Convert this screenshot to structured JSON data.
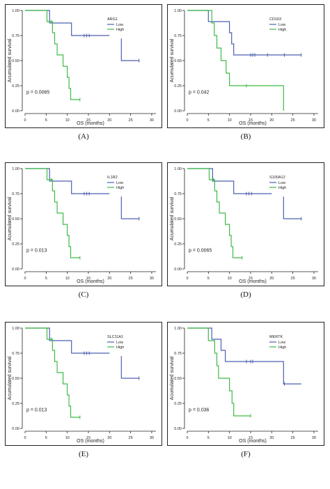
{
  "colors": {
    "low": "#4a5fb0",
    "high": "#3dbb45",
    "axis": "#222222",
    "text": "#222222"
  },
  "axis_common": {
    "xlabel": "OS (months)",
    "ylabel": "Acumulated survival",
    "xticks": [
      0,
      5,
      10,
      15,
      20,
      25,
      30
    ],
    "yticks": [
      0.0,
      0.25,
      0.5,
      0.75,
      1.0
    ],
    "ytick_labels": [
      "0.00",
      "0.25",
      "0.50",
      "0.75",
      "1.00"
    ],
    "xlim": [
      0,
      31
    ],
    "ylim": [
      0,
      1
    ]
  },
  "chart_data": [
    {
      "type": "line",
      "label": "(A)",
      "legend_title": "ARG1",
      "pvalue": "p = 0.0065",
      "series": [
        {
          "name": "Low",
          "points": [
            [
              0,
              1
            ],
            [
              5.8,
              1
            ],
            [
              5.8,
              0.875
            ],
            [
              11,
              0.875
            ],
            [
              11,
              0.75
            ],
            [
              20,
              0.75
            ]
          ],
          "jump": [
            [
              22.8,
              0.72
            ],
            [
              22.8,
              0.5
            ],
            [
              27,
              0.5
            ]
          ],
          "censors": [
            [
              14,
              0.75
            ],
            [
              14.6,
              0.75
            ],
            [
              15.2,
              0.75
            ],
            [
              27,
              0.5
            ]
          ]
        },
        {
          "name": "High",
          "points": [
            [
              0,
              1
            ],
            [
              5.2,
              1
            ],
            [
              5.2,
              0.889
            ],
            [
              6.5,
              0.889
            ],
            [
              6.5,
              0.778
            ],
            [
              7,
              0.778
            ],
            [
              7,
              0.667
            ],
            [
              7.6,
              0.667
            ],
            [
              7.6,
              0.556
            ],
            [
              9,
              0.556
            ],
            [
              9,
              0.444
            ],
            [
              10,
              0.444
            ],
            [
              10,
              0.333
            ],
            [
              10.4,
              0.333
            ],
            [
              10.4,
              0.222
            ],
            [
              10.8,
              0.222
            ],
            [
              10.8,
              0.111
            ],
            [
              13,
              0.111
            ]
          ],
          "censors": [
            [
              6.2,
              0.889
            ],
            [
              13,
              0.111
            ]
          ]
        }
      ]
    },
    {
      "type": "line",
      "label": "(B)",
      "legend_title": "CD163",
      "pvalue": "p = 0.042",
      "series": [
        {
          "name": "Low",
          "points": [
            [
              0,
              1
            ],
            [
              5,
              1
            ],
            [
              5,
              0.889
            ],
            [
              10,
              0.889
            ],
            [
              10,
              0.778
            ],
            [
              10.5,
              0.778
            ],
            [
              10.5,
              0.667
            ],
            [
              11,
              0.667
            ],
            [
              11,
              0.556
            ],
            [
              27,
              0.556
            ]
          ],
          "censors": [
            [
              15,
              0.556
            ],
            [
              15.5,
              0.556
            ],
            [
              16,
              0.556
            ],
            [
              19,
              0.556
            ],
            [
              23,
              0.556
            ],
            [
              27,
              0.556
            ]
          ]
        },
        {
          "name": "High",
          "points": [
            [
              0,
              1
            ],
            [
              5.8,
              1
            ],
            [
              5.8,
              0.875
            ],
            [
              6.4,
              0.875
            ],
            [
              6.4,
              0.75
            ],
            [
              7,
              0.75
            ],
            [
              7,
              0.625
            ],
            [
              8,
              0.625
            ],
            [
              8,
              0.5
            ],
            [
              9.2,
              0.5
            ],
            [
              9.2,
              0.375
            ],
            [
              10,
              0.375
            ],
            [
              10,
              0.25
            ],
            [
              22.8,
              0.25
            ],
            [
              22.8,
              0
            ]
          ],
          "censors": [
            [
              14,
              0.25
            ]
          ]
        }
      ]
    },
    {
      "type": "line",
      "label": "(C)",
      "legend_title": "IL1R2",
      "pvalue": "p = 0.013",
      "series": [
        {
          "name": "Low",
          "points": [
            [
              0,
              1
            ],
            [
              5.8,
              1
            ],
            [
              5.8,
              0.875
            ],
            [
              11,
              0.875
            ],
            [
              11,
              0.75
            ],
            [
              20,
              0.75
            ]
          ],
          "jump": [
            [
              22.8,
              0.72
            ],
            [
              22.8,
              0.5
            ],
            [
              27,
              0.5
            ]
          ],
          "censors": [
            [
              14,
              0.75
            ],
            [
              14.6,
              0.75
            ],
            [
              15.2,
              0.75
            ],
            [
              27,
              0.5
            ]
          ]
        },
        {
          "name": "High",
          "points": [
            [
              0,
              1
            ],
            [
              5.2,
              1
            ],
            [
              5.2,
              0.889
            ],
            [
              6.5,
              0.889
            ],
            [
              6.5,
              0.778
            ],
            [
              7,
              0.778
            ],
            [
              7,
              0.667
            ],
            [
              7.6,
              0.667
            ],
            [
              7.6,
              0.556
            ],
            [
              9,
              0.556
            ],
            [
              9,
              0.444
            ],
            [
              10,
              0.444
            ],
            [
              10,
              0.333
            ],
            [
              10.4,
              0.333
            ],
            [
              10.4,
              0.222
            ],
            [
              10.8,
              0.222
            ],
            [
              10.8,
              0.111
            ],
            [
              13,
              0.111
            ]
          ],
          "censors": [
            [
              6.2,
              0.889
            ],
            [
              13,
              0.111
            ]
          ]
        }
      ]
    },
    {
      "type": "line",
      "label": "(D)",
      "legend_title": "S100A12",
      "pvalue": "p = 0.0065",
      "series": [
        {
          "name": "Low",
          "points": [
            [
              0,
              1
            ],
            [
              6,
              1
            ],
            [
              6,
              0.875
            ],
            [
              11,
              0.875
            ],
            [
              11,
              0.75
            ],
            [
              20,
              0.75
            ]
          ],
          "jump": [
            [
              22.8,
              0.72
            ],
            [
              22.8,
              0.5
            ],
            [
              27,
              0.5
            ]
          ],
          "censors": [
            [
              14,
              0.75
            ],
            [
              14.6,
              0.75
            ],
            [
              15.2,
              0.75
            ],
            [
              27,
              0.5
            ]
          ]
        },
        {
          "name": "High",
          "points": [
            [
              0,
              1
            ],
            [
              5.2,
              1
            ],
            [
              5.2,
              0.889
            ],
            [
              6.5,
              0.889
            ],
            [
              6.5,
              0.778
            ],
            [
              7,
              0.778
            ],
            [
              7,
              0.667
            ],
            [
              7.6,
              0.667
            ],
            [
              7.6,
              0.556
            ],
            [
              9,
              0.556
            ],
            [
              9,
              0.444
            ],
            [
              10,
              0.444
            ],
            [
              10,
              0.333
            ],
            [
              10.4,
              0.333
            ],
            [
              10.4,
              0.222
            ],
            [
              10.8,
              0.222
            ],
            [
              10.8,
              0.111
            ],
            [
              13,
              0.111
            ]
          ],
          "censors": [
            [
              6.2,
              0.889
            ],
            [
              13,
              0.111
            ]
          ]
        }
      ]
    },
    {
      "type": "line",
      "label": "(E)",
      "legend_title": "SLC11A1",
      "pvalue": "p = 0.013",
      "series": [
        {
          "name": "Low",
          "points": [
            [
              0,
              1
            ],
            [
              5.8,
              1
            ],
            [
              5.8,
              0.875
            ],
            [
              11,
              0.875
            ],
            [
              11,
              0.75
            ],
            [
              20,
              0.75
            ]
          ],
          "jump": [
            [
              22.8,
              0.72
            ],
            [
              22.8,
              0.5
            ],
            [
              27,
              0.5
            ]
          ],
          "censors": [
            [
              14,
              0.75
            ],
            [
              14.6,
              0.75
            ],
            [
              15.2,
              0.75
            ],
            [
              27,
              0.5
            ]
          ]
        },
        {
          "name": "High",
          "points": [
            [
              0,
              1
            ],
            [
              5.2,
              1
            ],
            [
              5.2,
              0.889
            ],
            [
              6.5,
              0.889
            ],
            [
              6.5,
              0.778
            ],
            [
              7,
              0.778
            ],
            [
              7,
              0.667
            ],
            [
              7.6,
              0.667
            ],
            [
              7.6,
              0.556
            ],
            [
              9,
              0.556
            ],
            [
              9,
              0.444
            ],
            [
              10,
              0.444
            ],
            [
              10,
              0.333
            ],
            [
              10.4,
              0.333
            ],
            [
              10.4,
              0.222
            ],
            [
              10.8,
              0.222
            ],
            [
              10.8,
              0.111
            ],
            [
              13,
              0.111
            ]
          ],
          "censors": [
            [
              6.2,
              0.889
            ],
            [
              13,
              0.111
            ]
          ]
        }
      ]
    },
    {
      "type": "line",
      "label": "(F)",
      "legend_title": "MERTK",
      "pvalue": "p = 0.036",
      "series": [
        {
          "name": "Low",
          "points": [
            [
              0,
              1
            ],
            [
              5.8,
              1
            ],
            [
              5.8,
              0.889
            ],
            [
              8,
              0.889
            ],
            [
              8,
              0.778
            ],
            [
              9,
              0.778
            ],
            [
              9,
              0.667
            ],
            [
              22.8,
              0.667
            ],
            [
              22.8,
              0.444
            ],
            [
              27,
              0.444
            ]
          ],
          "censors": [
            [
              14,
              0.667
            ],
            [
              15,
              0.667
            ],
            [
              15.5,
              0.667
            ],
            [
              23,
              0.444
            ]
          ]
        },
        {
          "name": "High",
          "points": [
            [
              0,
              1
            ],
            [
              5,
              1
            ],
            [
              5,
              0.875
            ],
            [
              6.5,
              0.875
            ],
            [
              6.5,
              0.75
            ],
            [
              7,
              0.75
            ],
            [
              7,
              0.625
            ],
            [
              7.4,
              0.625
            ],
            [
              7.4,
              0.5
            ],
            [
              10,
              0.5
            ],
            [
              10,
              0.375
            ],
            [
              10.6,
              0.375
            ],
            [
              10.6,
              0.25
            ],
            [
              11,
              0.25
            ],
            [
              11,
              0.125
            ],
            [
              15,
              0.125
            ]
          ],
          "censors": [
            [
              15,
              0.125
            ]
          ]
        }
      ]
    }
  ]
}
